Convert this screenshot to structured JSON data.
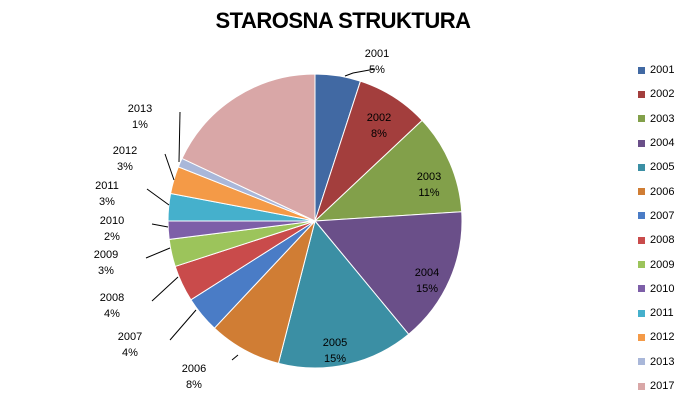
{
  "chart_data": {
    "type": "pie",
    "title": "STAROSNA STRUKTURA",
    "slices": [
      {
        "label": "2001",
        "pct_label": "5%",
        "value": 5,
        "color": "#4169A3"
      },
      {
        "label": "2002",
        "pct_label": "8%",
        "value": 8,
        "color": "#A33E3D"
      },
      {
        "label": "2003",
        "pct_label": "11%",
        "value": 11,
        "color": "#82A04A"
      },
      {
        "label": "2004",
        "pct_label": "15%",
        "value": 15,
        "color": "#6A4F89"
      },
      {
        "label": "2005",
        "pct_label": "15%",
        "value": 15,
        "color": "#3B8FA4"
      },
      {
        "label": "2006",
        "pct_label": "8%",
        "value": 8,
        "color": "#D07D34"
      },
      {
        "label": "2007",
        "pct_label": "4%",
        "value": 4,
        "color": "#4A7CC6"
      },
      {
        "label": "2008",
        "pct_label": "4%",
        "value": 4,
        "color": "#C94B4B"
      },
      {
        "label": "2009",
        "pct_label": "3%",
        "value": 3,
        "color": "#9CC45B"
      },
      {
        "label": "2010",
        "pct_label": "2%",
        "value": 2,
        "color": "#7D5FA8"
      },
      {
        "label": "2011",
        "pct_label": "3%",
        "value": 3,
        "color": "#45B0CC"
      },
      {
        "label": "2012",
        "pct_label": "3%",
        "value": 3,
        "color": "#F49A47"
      },
      {
        "label": "2013",
        "pct_label": "1%",
        "value": 1,
        "color": "#A9B7D9"
      },
      {
        "label": "2017",
        "pct_label": "18%",
        "value": 18,
        "color": "#D9A7A7"
      }
    ],
    "legend": "right"
  }
}
